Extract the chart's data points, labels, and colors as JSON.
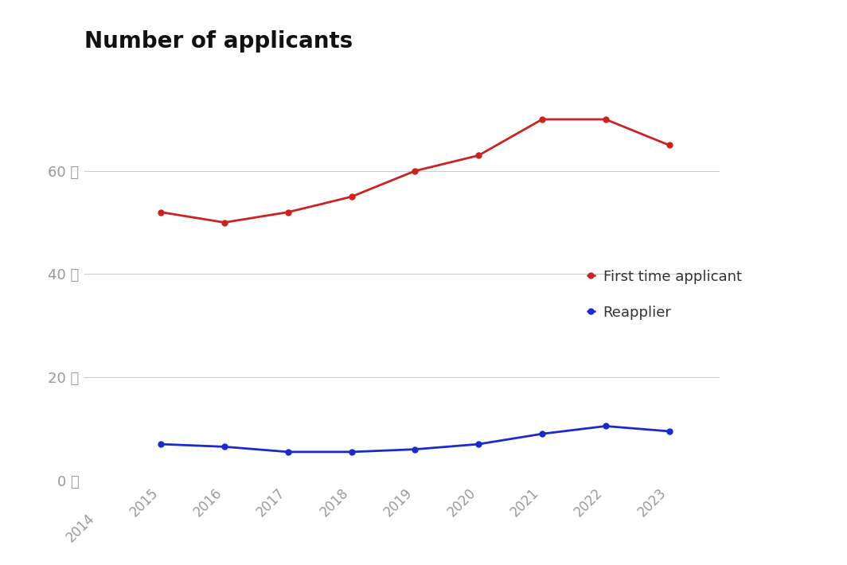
{
  "title": "Number of applicants",
  "years": [
    2015,
    2016,
    2017,
    2018,
    2019,
    2020,
    2021,
    2022,
    2023
  ],
  "first_time": [
    52000,
    50000,
    52000,
    55000,
    60000,
    63000,
    70000,
    70000,
    65000
  ],
  "reapplier": [
    7000,
    6500,
    5500,
    5500,
    6000,
    7000,
    9000,
    10500,
    9500
  ],
  "line_color_red": "#CC2222",
  "line_color_blue": "#1A2ACC",
  "legend_label_red": "First time applicant",
  "legend_label_blue": "Reapplier",
  "ylim": [
    0,
    80000
  ],
  "yticks": [
    0,
    20000,
    40000,
    60000
  ],
  "ytick_labels": [
    "0 千",
    "20 千",
    "40 千",
    "60 千"
  ],
  "background_color": "#ffffff",
  "grid_color": "#cccccc",
  "title_fontsize": 20,
  "tick_color": "#999999",
  "legend_fontsize": 13,
  "line_width": 2.0,
  "marker_size": 6
}
